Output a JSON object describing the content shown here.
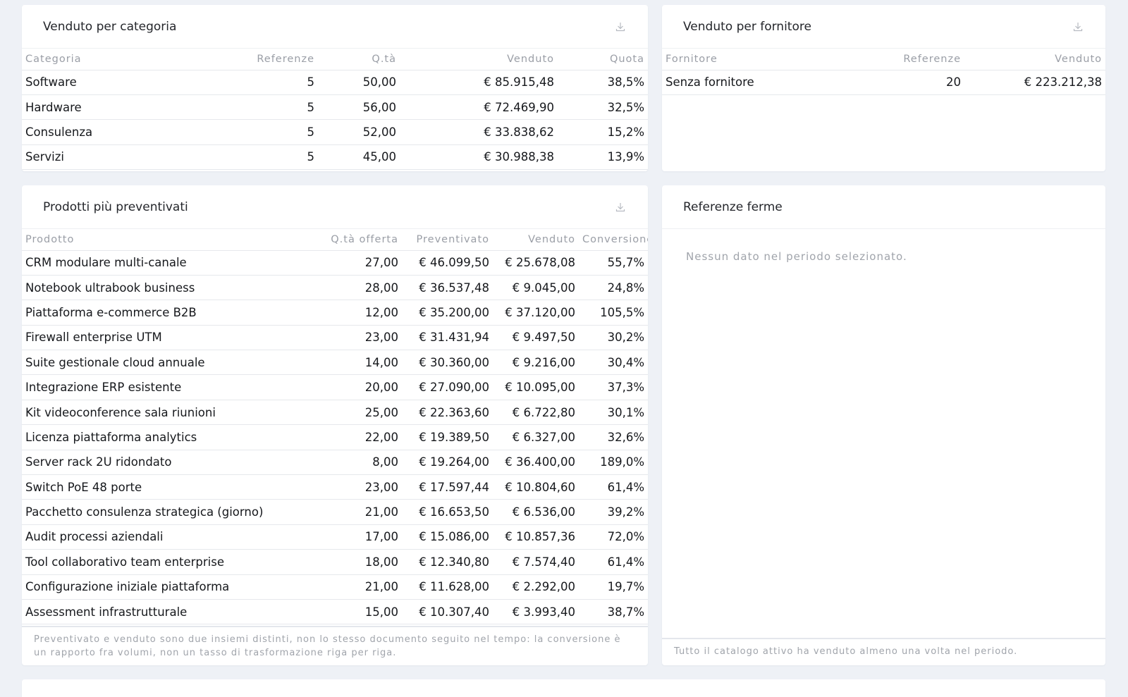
{
  "cards": {
    "category": {
      "title": "Venduto per categoria",
      "columns": [
        "Categoria",
        "Referenze",
        "Q.tà",
        "Venduto",
        "Quota"
      ],
      "rows": [
        [
          "Software",
          "5",
          "50,00",
          "€ 85.915,48",
          "38,5%"
        ],
        [
          "Hardware",
          "5",
          "56,00",
          "€ 72.469,90",
          "32,5%"
        ],
        [
          "Consulenza",
          "5",
          "52,00",
          "€ 33.838,62",
          "15,2%"
        ],
        [
          "Servizi",
          "5",
          "45,00",
          "€ 30.988,38",
          "13,9%"
        ]
      ]
    },
    "supplier": {
      "title": "Venduto per fornitore",
      "columns": [
        "Fornitore",
        "Referenze",
        "Venduto"
      ],
      "rows": [
        [
          "Senza fornitore",
          "20",
          "€ 223.212,38"
        ]
      ]
    },
    "quoted": {
      "title": "Prodotti più preventivati",
      "columns": [
        "Prodotto",
        "Q.tà offerta",
        "Preventivato",
        "Venduto",
        "Conversione"
      ],
      "rows": [
        [
          "CRM modulare multi-canale",
          "27,00",
          "€ 46.099,50",
          "€ 25.678,08",
          "55,7%"
        ],
        [
          "Notebook ultrabook business",
          "28,00",
          "€ 36.537,48",
          "€ 9.045,00",
          "24,8%"
        ],
        [
          "Piattaforma e-commerce B2B",
          "12,00",
          "€ 35.200,00",
          "€ 37.120,00",
          "105,5%"
        ],
        [
          "Firewall enterprise UTM",
          "23,00",
          "€ 31.431,94",
          "€ 9.497,50",
          "30,2%"
        ],
        [
          "Suite gestionale cloud annuale",
          "14,00",
          "€ 30.360,00",
          "€ 9.216,00",
          "30,4%"
        ],
        [
          "Integrazione ERP esistente",
          "20,00",
          "€ 27.090,00",
          "€ 10.095,00",
          "37,3%"
        ],
        [
          "Kit videoconference sala riunioni",
          "25,00",
          "€ 22.363,60",
          "€ 6.722,80",
          "30,1%"
        ],
        [
          "Licenza piattaforma analytics",
          "22,00",
          "€ 19.389,50",
          "€ 6.327,00",
          "32,6%"
        ],
        [
          "Server rack 2U ridondato",
          "8,00",
          "€ 19.264,00",
          "€ 36.400,00",
          "189,0%"
        ],
        [
          "Switch PoE 48 porte",
          "23,00",
          "€ 17.597,44",
          "€ 10.804,60",
          "61,4%"
        ],
        [
          "Pacchetto consulenza strategica (giorno)",
          "21,00",
          "€ 16.653,50",
          "€ 6.536,00",
          "39,2%"
        ],
        [
          "Audit processi aziendali",
          "17,00",
          "€ 15.086,00",
          "€ 10.857,36",
          "72,0%"
        ],
        [
          "Tool collaborativo team enterprise",
          "18,00",
          "€ 12.340,80",
          "€ 7.574,40",
          "61,4%"
        ],
        [
          "Configurazione iniziale piattaforma",
          "21,00",
          "€ 11.628,00",
          "€ 2.292,00",
          "19,7%"
        ],
        [
          "Assessment infrastrutturale",
          "15,00",
          "€ 10.307,40",
          "€ 3.993,40",
          "38,7%"
        ]
      ],
      "footnote": "Preventivato e venduto sono due insiemi distinti, non lo stesso documento seguito nel tempo: la conversione è un rapporto fra volumi, non un tasso di trasformazione riga per riga."
    },
    "stale": {
      "title": "Referenze ferme",
      "empty_text": "Nessun dato nel periodo selezionato.",
      "footnote": "Tutto il catalogo attivo ha venduto almeno una volta nel periodo."
    }
  },
  "icons": {
    "download": "download-icon"
  }
}
